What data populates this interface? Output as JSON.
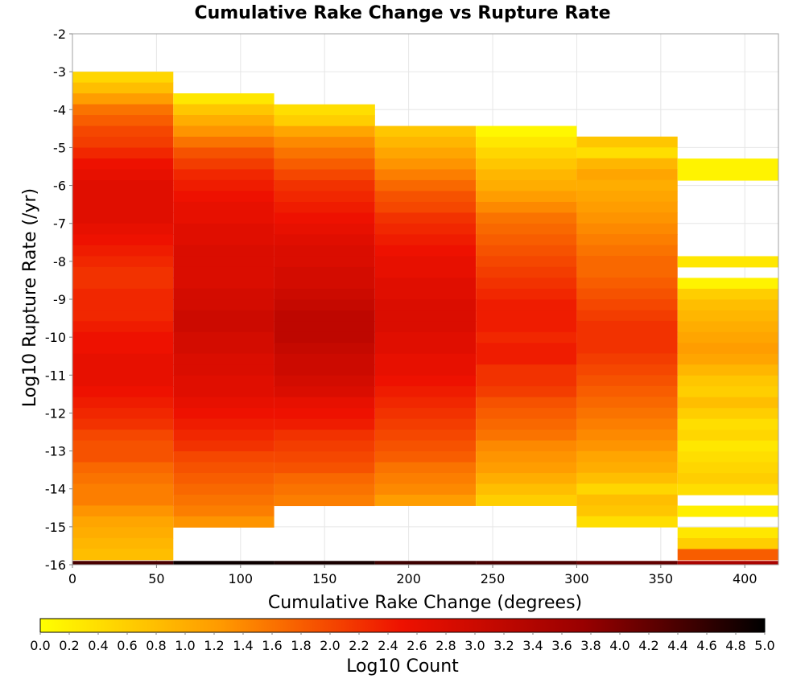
{
  "chart_data": {
    "type": "heatmap",
    "title": "Cumulative Rake Change vs Rupture Rate",
    "xlabel": "Cumulative Rake Change (degrees)",
    "ylabel": "Log10 Rupture Rate (/yr)",
    "xlim": [
      0,
      420
    ],
    "ylim": [
      -16,
      -2
    ],
    "x_ticks": [
      0,
      50,
      100,
      150,
      200,
      250,
      300,
      350,
      400
    ],
    "y_ticks": [
      -2,
      -3,
      -4,
      -5,
      -6,
      -7,
      -8,
      -9,
      -10,
      -11,
      -12,
      -13,
      -14,
      -15,
      -16
    ],
    "grid": true,
    "x_bin_width": 60,
    "y_bin_height": 0.286,
    "colorbar": {
      "label": "Log10 Count",
      "min": 0.0,
      "max": 5.0,
      "ticks": [
        "0.0",
        "0.2",
        "0.4",
        "0.6",
        "0.8",
        "1.0",
        "1.2",
        "1.4",
        "1.6",
        "1.8",
        "2.0",
        "2.2",
        "2.4",
        "2.6",
        "2.8",
        "3.0",
        "3.2",
        "3.4",
        "3.6",
        "3.8",
        "4.0",
        "4.2",
        "4.4",
        "4.6",
        "4.8",
        "5.0"
      ],
      "colors": [
        "#ffff00",
        "#ff9900",
        "#ee1100",
        "#990000",
        "#000000"
      ]
    },
    "columns": [
      {
        "x_start": 0,
        "top": -3.0,
        "values": [
          0.5,
          0.8,
          1.2,
          1.6,
          1.8,
          2.0,
          2.1,
          2.3,
          2.5,
          2.6,
          2.7,
          2.7,
          2.7,
          2.7,
          2.6,
          2.5,
          2.4,
          2.3,
          2.2,
          2.2,
          2.3,
          2.3,
          2.3,
          2.4,
          2.5,
          2.5,
          2.6,
          2.6,
          2.6,
          2.5,
          2.4,
          2.3,
          2.2,
          2.0,
          1.9,
          1.9,
          1.7,
          1.6,
          1.5,
          1.5,
          1.3,
          1.1,
          1.0,
          0.9,
          0.8
        ]
      },
      {
        "x_start": 60,
        "top": -3.57,
        "values": [
          0.3,
          0.7,
          1.0,
          1.3,
          1.6,
          1.9,
          2.1,
          2.3,
          2.4,
          2.5,
          2.6,
          2.6,
          2.7,
          2.7,
          2.8,
          2.8,
          2.8,
          2.8,
          2.9,
          2.9,
          3.0,
          3.0,
          2.9,
          2.9,
          2.8,
          2.8,
          2.7,
          2.7,
          2.6,
          2.5,
          2.4,
          2.3,
          2.2,
          2.0,
          1.9,
          1.8,
          1.7,
          1.6,
          1.5,
          1.3
        ]
      },
      {
        "x_start": 120,
        "top": -3.86,
        "values": [
          0.4,
          0.6,
          1.1,
          1.4,
          1.6,
          1.8,
          2.0,
          2.2,
          2.3,
          2.4,
          2.5,
          2.6,
          2.7,
          2.8,
          2.8,
          2.9,
          2.9,
          3.0,
          3.1,
          3.2,
          3.2,
          3.2,
          3.1,
          3.0,
          3.0,
          2.9,
          2.8,
          2.6,
          2.5,
          2.4,
          2.2,
          2.1,
          2.0,
          1.9,
          1.7,
          1.6,
          1.5
        ]
      },
      {
        "x_start": 180,
        "top": -4.43,
        "values": [
          0.7,
          0.9,
          1.1,
          1.3,
          1.5,
          1.7,
          1.9,
          2.0,
          2.2,
          2.3,
          2.4,
          2.5,
          2.6,
          2.6,
          2.7,
          2.7,
          2.8,
          2.8,
          2.8,
          2.7,
          2.7,
          2.6,
          2.6,
          2.5,
          2.4,
          2.3,
          2.2,
          2.1,
          2.0,
          1.9,
          1.8,
          1.6,
          1.5,
          1.4,
          1.2
        ]
      },
      {
        "x_start": 240,
        "top": -4.43,
        "values": [
          0.1,
          0.3,
          0.5,
          0.7,
          0.9,
          1.0,
          1.2,
          1.4,
          1.6,
          1.7,
          1.8,
          1.9,
          2.0,
          2.1,
          2.2,
          2.3,
          2.4,
          2.4,
          2.4,
          2.3,
          2.4,
          2.4,
          2.2,
          2.2,
          2.1,
          1.9,
          1.8,
          1.7,
          1.6,
          1.4,
          1.3,
          1.2,
          1.0,
          0.8,
          0.6
        ]
      },
      {
        "x_start": 300,
        "top": -4.71,
        "values": [
          0.7,
          0.4,
          0.9,
          1.1,
          1.0,
          1.1,
          1.2,
          1.3,
          1.4,
          1.5,
          1.6,
          1.7,
          1.7,
          1.8,
          1.9,
          2.0,
          2.1,
          2.2,
          2.2,
          2.2,
          2.1,
          2.0,
          1.9,
          1.8,
          1.7,
          1.6,
          1.5,
          1.4,
          1.3,
          1.1,
          1.0,
          0.8,
          0.5,
          0.8,
          0.7,
          0.4
        ]
      },
      {
        "x_start": 360,
        "top": -5.29,
        "values": [
          0.15,
          0.15,
          null,
          null,
          null,
          null,
          null,
          null,
          null,
          0.3,
          null,
          0.15,
          0.6,
          0.8,
          0.9,
          1.0,
          1.1,
          1.2,
          1.1,
          0.9,
          0.7,
          0.6,
          0.8,
          0.6,
          0.4,
          0.5,
          0.3,
          0.4,
          0.5,
          0.6,
          0.4,
          null,
          0.2,
          null,
          0.3,
          0.6,
          1.8
        ]
      }
    ],
    "bottom_row": {
      "y": -16,
      "values": [
        4.4,
        4.9,
        4.8,
        4.5,
        4.4,
        4.2,
        3.5
      ]
    }
  }
}
